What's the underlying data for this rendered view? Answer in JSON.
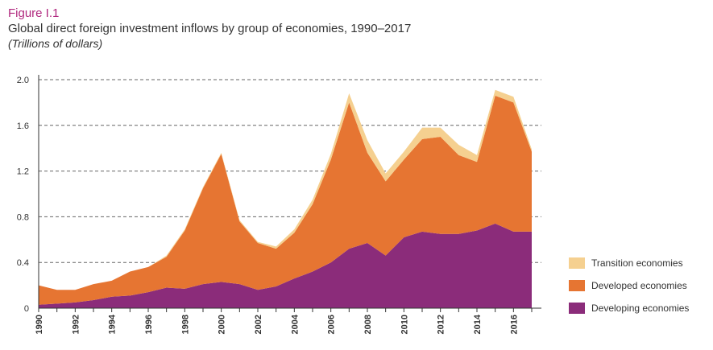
{
  "header": {
    "figure_label": "Figure I.1",
    "title": "Global direct foreign investment inflows by group of economies, 1990–2017",
    "subtitle": "(Trillions of dollars)"
  },
  "colors": {
    "developing": "#8b2c7a",
    "developed": "#e67532",
    "transition": "#f5d090",
    "grid": "#666666",
    "axis": "#333333"
  },
  "chart_data": {
    "type": "area",
    "stacked": true,
    "x": [
      1990,
      1991,
      1992,
      1993,
      1994,
      1995,
      1996,
      1997,
      1998,
      1999,
      2000,
      2001,
      2002,
      2003,
      2004,
      2005,
      2006,
      2007,
      2008,
      2009,
      2010,
      2011,
      2012,
      2013,
      2014,
      2015,
      2016,
      2017
    ],
    "x_tick_labels": [
      "1990",
      "1992",
      "1994",
      "1996",
      "1998",
      "2000",
      "2002",
      "2004",
      "2006",
      "2008",
      "2010",
      "2012",
      "2014",
      "2016"
    ],
    "ylim": [
      0,
      2.0
    ],
    "y_ticks": [
      "0",
      "0.4",
      "0.8",
      "1.2",
      "1.6",
      "2.0"
    ],
    "grid": "horizontal dashed",
    "legend_position": "bottom-right",
    "series": [
      {
        "name": "Developing economies",
        "color_key": "developing",
        "values": [
          0.03,
          0.04,
          0.05,
          0.07,
          0.1,
          0.11,
          0.14,
          0.18,
          0.17,
          0.21,
          0.23,
          0.21,
          0.16,
          0.19,
          0.26,
          0.32,
          0.4,
          0.52,
          0.57,
          0.46,
          0.62,
          0.67,
          0.65,
          0.65,
          0.68,
          0.74,
          0.67,
          0.67
        ]
      },
      {
        "name": "Developed economies",
        "color_key": "developed",
        "values": [
          0.17,
          0.12,
          0.11,
          0.14,
          0.14,
          0.21,
          0.22,
          0.27,
          0.51,
          0.84,
          1.12,
          0.55,
          0.41,
          0.33,
          0.4,
          0.59,
          0.9,
          1.28,
          0.79,
          0.65,
          0.68,
          0.81,
          0.85,
          0.69,
          0.6,
          1.12,
          1.13,
          0.7
        ]
      },
      {
        "name": "Transition economies",
        "color_key": "transition",
        "values": [
          0.0,
          0.0,
          0.0,
          0.0,
          0.0,
          0.0,
          0.0,
          0.01,
          0.01,
          0.01,
          0.01,
          0.01,
          0.01,
          0.02,
          0.03,
          0.04,
          0.05,
          0.08,
          0.11,
          0.07,
          0.07,
          0.1,
          0.08,
          0.09,
          0.06,
          0.05,
          0.05,
          0.02
        ]
      }
    ]
  },
  "legend": {
    "items": [
      {
        "label": "Transition economies",
        "color_key": "transition"
      },
      {
        "label": "Developed economies",
        "color_key": "developed"
      },
      {
        "label": "Developing economies",
        "color_key": "developing"
      }
    ]
  }
}
